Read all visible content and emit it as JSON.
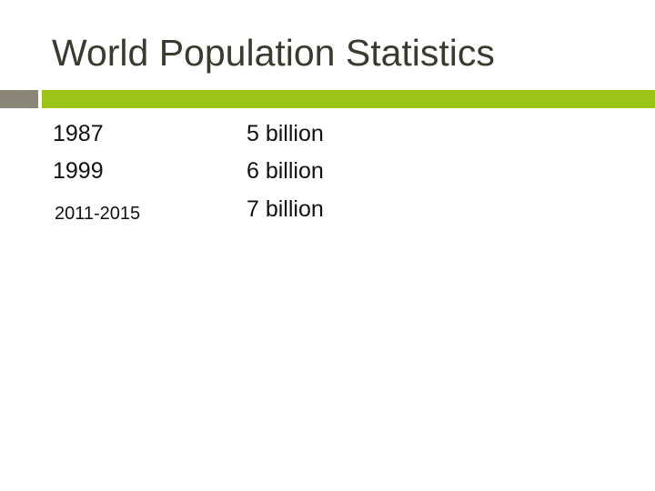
{
  "slide": {
    "title": "World Population Statistics",
    "rows": [
      {
        "year": "1987",
        "value": "5 billion"
      },
      {
        "year": "1999",
        "value": "6 billion"
      },
      {
        "year": "2011-2015",
        "value": "7 billion"
      }
    ]
  },
  "colors": {
    "accent_green": "#9cc418",
    "accent_gray": "#8a8778",
    "title_text": "#3a3a2e"
  }
}
